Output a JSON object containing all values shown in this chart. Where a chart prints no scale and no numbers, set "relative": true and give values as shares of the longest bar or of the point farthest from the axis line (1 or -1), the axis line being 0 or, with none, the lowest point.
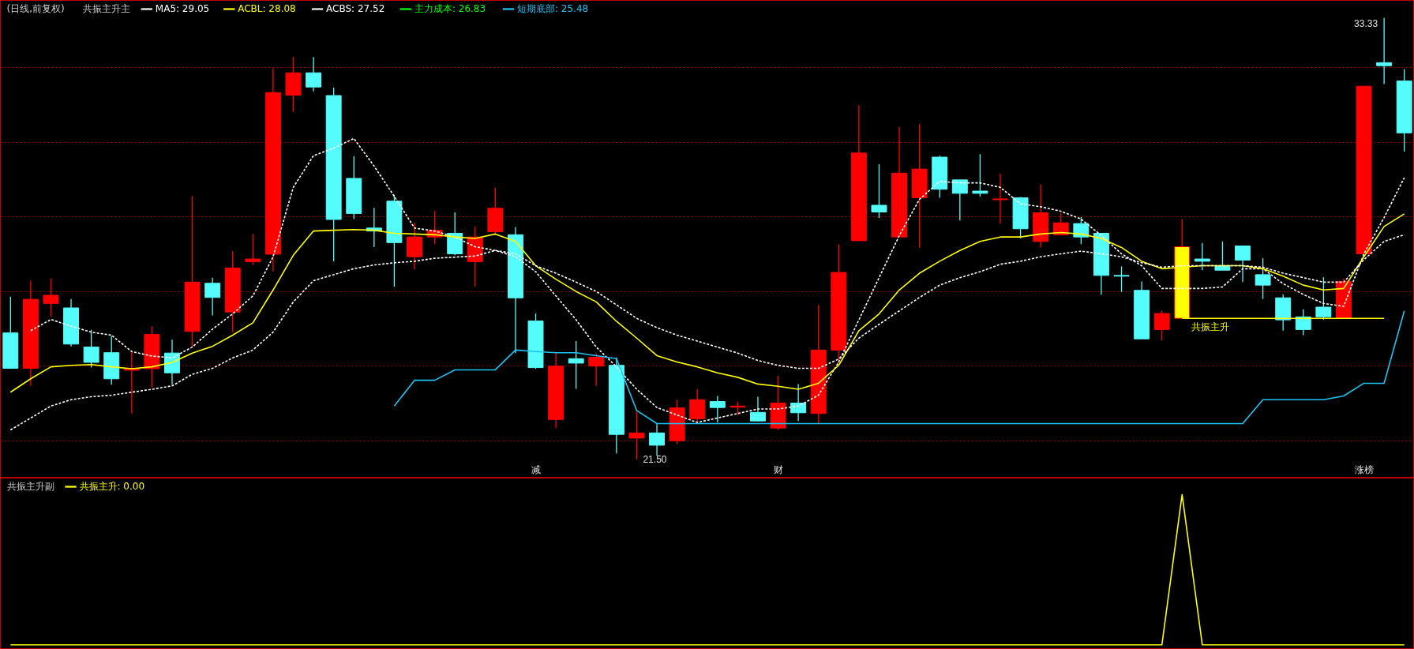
{
  "chart_data": [
    {
      "type": "candlestick",
      "title": "(日线,前复权)",
      "subtitle": "共振主升主",
      "legend": "top left",
      "tick_labels": "x",
      "grid": "y",
      "categories": [
        null,
        null,
        null,
        null,
        null,
        null,
        null,
        null,
        null,
        null,
        null,
        null,
        null,
        null,
        null,
        null,
        null,
        null,
        null,
        null,
        null,
        null,
        null,
        null,
        null,
        null,
        "减",
        null,
        null,
        null,
        null,
        null,
        null,
        null,
        null,
        null,
        null,
        null,
        "财",
        null,
        null,
        null,
        null,
        null,
        null,
        null,
        null,
        null,
        null,
        null,
        null,
        null,
        null,
        null,
        null,
        null,
        null,
        null,
        null,
        null,
        null,
        null,
        null,
        null,
        null,
        null,
        null,
        "涨榜",
        null,
        null
      ],
      "ylim": [
        21.0,
        33.8
      ],
      "yticks": [
        {
          "value": 22,
          "label": null
        },
        {
          "value": 24,
          "label": null
        },
        {
          "value": 26,
          "label": null
        },
        {
          "value": 28,
          "label": null
        },
        {
          "value": 30,
          "label": null
        },
        {
          "value": 32,
          "label": null
        }
      ],
      "ohlc": [
        [
          24.89,
          25.86,
          23.93,
          23.94
        ],
        [
          23.94,
          26.29,
          23.47,
          25.79
        ],
        [
          25.68,
          26.35,
          25.32,
          25.9
        ],
        [
          25.56,
          25.8,
          24.53,
          24.59
        ],
        [
          24.51,
          24.97,
          23.96,
          24.1
        ],
        [
          24.36,
          24.81,
          23.5,
          23.66
        ],
        [
          23.89,
          24.41,
          22.73,
          23.94
        ],
        [
          23.93,
          25.07,
          23.43,
          24.85
        ],
        [
          24.35,
          24.71,
          23.5,
          23.82
        ],
        [
          24.93,
          28.55,
          24.51,
          26.25
        ],
        [
          26.22,
          26.37,
          25.36,
          25.84
        ],
        [
          25.45,
          27.07,
          24.91,
          26.63
        ],
        [
          26.8,
          27.54,
          26.71,
          26.87
        ],
        [
          27.0,
          31.98,
          26.53,
          31.33
        ],
        [
          31.26,
          32.28,
          30.81,
          31.86
        ],
        [
          31.86,
          32.28,
          31.36,
          31.48
        ],
        [
          31.25,
          31.46,
          26.81,
          27.93
        ],
        [
          29.03,
          29.62,
          27.94,
          28.09
        ],
        [
          27.7,
          28.24,
          27.19,
          27.62
        ],
        [
          28.42,
          28.59,
          26.13,
          27.31
        ],
        [
          26.93,
          27.84,
          26.59,
          27.46
        ],
        [
          27.46,
          28.16,
          27.27,
          27.64
        ],
        [
          27.56,
          28.12,
          26.97,
          27.01
        ],
        [
          26.8,
          27.74,
          26.13,
          27.46
        ],
        [
          27.6,
          28.78,
          27.5,
          28.23
        ],
        [
          27.52,
          27.73,
          24.35,
          25.83
        ],
        [
          25.21,
          25.41,
          23.93,
          23.96
        ],
        [
          22.57,
          24.35,
          22.34,
          24.0
        ],
        [
          24.2,
          24.67,
          23.39,
          24.08
        ],
        [
          24.0,
          24.35,
          23.47,
          24.24
        ],
        [
          24.02,
          24.23,
          21.66,
          22.17
        ],
        [
          22.07,
          22.81,
          21.5,
          22.21
        ],
        [
          22.21,
          22.45,
          21.6,
          21.88
        ],
        [
          22.0,
          23.1,
          21.91,
          22.88
        ],
        [
          22.59,
          23.38,
          22.49,
          23.1
        ],
        [
          23.05,
          23.2,
          22.49,
          22.89
        ],
        [
          22.9,
          23.05,
          22.69,
          22.93
        ],
        [
          22.76,
          23.18,
          22.52,
          22.53
        ],
        [
          22.34,
          23.74,
          22.29,
          23.01
        ],
        [
          23.01,
          23.52,
          22.53,
          22.75
        ],
        [
          22.73,
          25.64,
          22.45,
          24.43
        ],
        [
          24.43,
          27.26,
          24.06,
          26.51
        ],
        [
          27.36,
          30.99,
          27.36,
          29.71
        ],
        [
          28.31,
          29.41,
          27.97,
          28.13
        ],
        [
          27.46,
          30.41,
          27.46,
          29.17
        ],
        [
          28.51,
          30.49,
          27.18,
          29.28
        ],
        [
          29.6,
          29.64,
          28.51,
          28.74
        ],
        [
          28.99,
          28.99,
          27.9,
          28.63
        ],
        [
          28.69,
          29.68,
          28.55,
          28.63
        ],
        [
          28.46,
          29.16,
          27.82,
          28.48
        ],
        [
          28.51,
          28.53,
          27.42,
          27.68
        ],
        [
          27.34,
          28.87,
          27.18,
          28.11
        ],
        [
          27.52,
          28.11,
          27.52,
          27.84
        ],
        [
          27.82,
          28.0,
          27.27,
          27.46
        ],
        [
          27.56,
          27.56,
          25.91,
          26.43
        ],
        [
          26.43,
          26.67,
          25.99,
          26.41
        ],
        [
          26.03,
          26.27,
          24.73,
          24.73
        ],
        [
          24.98,
          25.49,
          24.69,
          25.41
        ],
        [
          25.28,
          27.94,
          25.28,
          27.2
        ],
        [
          26.87,
          27.3,
          26.57,
          26.81
        ],
        [
          26.69,
          27.34,
          26.57,
          26.57
        ],
        [
          27.22,
          27.22,
          26.25,
          26.84
        ],
        [
          26.45,
          26.89,
          25.8,
          26.17
        ],
        [
          25.83,
          25.92,
          24.95,
          25.24
        ],
        [
          25.32,
          25.52,
          24.83,
          24.98
        ],
        [
          25.58,
          26.38,
          25.24,
          25.32
        ],
        [
          25.28,
          26.35,
          25.28,
          26.27
        ],
        [
          27.01,
          31.5,
          27.01,
          31.5
        ],
        [
          32.13,
          33.33,
          31.56,
          32.05
        ],
        [
          31.64,
          31.96,
          29.75,
          30.25
        ]
      ],
      "colors": [
        "#54fcfc",
        "#ff0000",
        "#ff0000",
        "#54fcfc",
        "#54fcfc",
        "#54fcfc",
        "#ff0000",
        "#ff0000",
        "#54fcfc",
        "#ff0000",
        "#54fcfc",
        "#ff0000",
        "#ff0000",
        "#ff0000",
        "#ff0000",
        "#54fcfc",
        "#54fcfc",
        "#54fcfc",
        "#54fcfc",
        "#54fcfc",
        "#ff0000",
        "#ff0000",
        "#54fcfc",
        "#ff0000",
        "#ff0000",
        "#54fcfc",
        "#54fcfc",
        "#ff0000",
        "#54fcfc",
        "#ff0000",
        "#54fcfc",
        "#ff0000",
        "#54fcfc",
        "#ff0000",
        "#ff0000",
        "#54fcfc",
        "#ff0000",
        "#54fcfc",
        "#ff0000",
        "#54fcfc",
        "#ff0000",
        "#ff0000",
        "#ff0000",
        "#54fcfc",
        "#ff0000",
        "#ff0000",
        "#54fcfc",
        "#54fcfc",
        "#54fcfc",
        "#ff0000",
        "#54fcfc",
        "#ff0000",
        "#ff0000",
        "#54fcfc",
        "#54fcfc",
        "#54fcfc",
        "#54fcfc",
        "#ff0000",
        "#ffff00",
        "#54fcfc",
        "#54fcfc",
        "#54fcfc",
        "#54fcfc",
        "#54fcfc",
        "#54fcfc",
        "#54fcfc",
        "#ff0000",
        "#ff0000",
        "#54fcfc",
        "#54fcfc"
      ],
      "series": [
        {
          "type": "line",
          "name": "MA5: 29.05",
          "color": "#ffffff",
          "line_style": "dashed",
          "values": [
            null,
            24.95,
            25.25,
            25.07,
            24.91,
            24.83,
            24.39,
            24.27,
            24.22,
            24.51,
            24.99,
            25.4,
            25.88,
            26.93,
            28.79,
            29.64,
            29.84,
            30.1,
            29.36,
            28.55,
            27.7,
            27.62,
            27.46,
            27.2,
            27.1,
            26.93,
            26.53,
            25.88,
            25.24,
            24.51,
            23.98,
            23.38,
            22.89,
            22.69,
            22.49,
            22.61,
            22.73,
            22.85,
            22.85,
            22.93,
            23.22,
            24.11,
            25.24,
            26.37,
            27.5,
            28.47,
            28.95,
            28.91,
            28.91,
            28.79,
            28.35,
            28.27,
            28.15,
            27.94,
            27.5,
            27.01,
            26.69,
            26.08,
            26.08,
            26.08,
            26.12,
            26.61,
            26.61,
            26.21,
            25.92,
            25.68,
            25.6,
            27.01,
            27.98,
            29.05
          ]
        },
        {
          "type": "line",
          "name": "ACBL: 28.08",
          "color": "#ffff00",
          "line_style": "solid",
          "values": [
            23.3,
            23.66,
            23.98,
            24.02,
            24.04,
            23.98,
            23.93,
            23.98,
            24.1,
            24.35,
            24.53,
            24.83,
            25.16,
            26.04,
            26.97,
            27.62,
            27.64,
            27.66,
            27.64,
            27.56,
            27.54,
            27.52,
            27.46,
            27.42,
            27.54,
            27.34,
            26.69,
            26.33,
            26.0,
            25.72,
            25.2,
            24.75,
            24.28,
            24.11,
            23.98,
            23.82,
            23.7,
            23.52,
            23.46,
            23.38,
            23.54,
            24.02,
            24.95,
            25.4,
            26.04,
            26.49,
            26.81,
            27.1,
            27.34,
            27.46,
            27.46,
            27.54,
            27.58,
            27.54,
            27.42,
            27.18,
            26.81,
            26.61,
            26.65,
            26.69,
            26.69,
            26.69,
            26.61,
            26.41,
            26.17,
            26.04,
            26.08,
            26.93,
            27.74,
            28.08
          ]
        },
        {
          "type": "line",
          "name": "ACBS: 27.52",
          "color": "#ffffff",
          "line_style": "dashed",
          "values": [
            22.29,
            22.61,
            22.93,
            23.1,
            23.18,
            23.22,
            23.3,
            23.38,
            23.47,
            23.78,
            23.94,
            24.22,
            24.43,
            24.91,
            25.72,
            26.29,
            26.45,
            26.61,
            26.71,
            26.77,
            26.81,
            26.89,
            26.92,
            26.95,
            27.1,
            27.01,
            26.69,
            26.49,
            26.25,
            26.0,
            25.64,
            25.28,
            25.03,
            24.83,
            24.67,
            24.51,
            24.35,
            24.15,
            24.02,
            23.94,
            23.94,
            24.19,
            24.75,
            25.12,
            25.48,
            25.84,
            26.17,
            26.37,
            26.53,
            26.73,
            26.81,
            26.93,
            27.01,
            27.08,
            27.01,
            26.93,
            26.77,
            26.65,
            26.69,
            26.69,
            26.69,
            26.69,
            26.65,
            26.49,
            26.37,
            26.25,
            26.25,
            26.85,
            27.34,
            27.52
          ]
        },
        {
          "type": "line",
          "name": "主力成本: 26.83",
          "color": "#00ff00",
          "line_style": "solid",
          "values": [
            null,
            null,
            null,
            null,
            null,
            null,
            null,
            null,
            null,
            null,
            null,
            null,
            null,
            null,
            null,
            null,
            null,
            null,
            null,
            null,
            null,
            null,
            null,
            null,
            null,
            null,
            null,
            null,
            null,
            null,
            null,
            null,
            null,
            null,
            null,
            null,
            null,
            null,
            null,
            null,
            null,
            null,
            null,
            null,
            null,
            null,
            null,
            null,
            null,
            null,
            null,
            null,
            null,
            null,
            null,
            null,
            null,
            null,
            null,
            null,
            null,
            null,
            null,
            null,
            null,
            null,
            null,
            null,
            null,
            null
          ]
        },
        {
          "type": "line",
          "name": "短期底部: 25.48",
          "color": "#1cc4f4",
          "line_style": "solid",
          "values": [
            null,
            null,
            null,
            null,
            null,
            null,
            null,
            null,
            null,
            null,
            null,
            null,
            null,
            null,
            null,
            null,
            null,
            null,
            null,
            22.93,
            23.62,
            23.62,
            23.9,
            23.9,
            23.9,
            24.43,
            24.39,
            24.36,
            24.36,
            24.28,
            24.2,
            22.81,
            22.46,
            22.46,
            22.46,
            22.46,
            22.46,
            22.46,
            22.46,
            22.46,
            22.46,
            22.46,
            22.46,
            22.46,
            22.46,
            22.46,
            22.46,
            22.46,
            22.46,
            22.46,
            22.46,
            22.46,
            22.46,
            22.46,
            22.46,
            22.46,
            22.46,
            22.46,
            22.46,
            22.46,
            22.46,
            22.46,
            23.1,
            23.1,
            23.1,
            23.1,
            23.2,
            23.54,
            23.54,
            25.48
          ]
        },
        {
          "type": "line",
          "name": "共振主升",
          "color": "#ffff00",
          "line_style": "solid",
          "values": [
            null,
            null,
            null,
            null,
            null,
            null,
            null,
            null,
            null,
            null,
            null,
            null,
            null,
            null,
            null,
            null,
            null,
            null,
            null,
            null,
            null,
            null,
            null,
            null,
            null,
            null,
            null,
            null,
            null,
            null,
            null,
            null,
            null,
            null,
            null,
            null,
            null,
            null,
            null,
            null,
            null,
            null,
            null,
            null,
            null,
            null,
            null,
            null,
            null,
            null,
            null,
            null,
            null,
            null,
            null,
            null,
            null,
            null,
            25.28,
            25.28,
            25.28,
            25.28,
            25.28,
            25.28,
            25.28,
            25.28,
            25.28,
            25.28,
            25.28,
            null
          ]
        }
      ],
      "annotations": [
        "21.50",
        "33.33"
      ]
    },
    {
      "type": "line",
      "title": "共振主升副",
      "legend": "top left",
      "relative": true,
      "tick_labels": false,
      "categories": [
        null,
        null,
        null,
        null,
        null,
        null,
        null,
        null,
        null,
        null,
        null,
        null,
        null,
        null,
        null,
        null,
        null,
        null,
        null,
        null,
        null,
        null,
        null,
        null,
        null,
        null,
        null,
        null,
        null,
        null,
        null,
        null,
        null,
        null,
        null,
        null,
        null,
        null,
        null,
        null,
        null,
        null,
        null,
        null,
        null,
        null,
        null,
        null,
        null,
        null,
        null,
        null,
        null,
        null,
        null,
        null,
        null,
        null,
        null,
        null,
        null,
        null,
        null,
        null,
        null,
        null,
        null,
        null,
        null,
        null
      ],
      "series": [
        {
          "name": "共振主升: 0.00",
          "color": "#ffff00",
          "values": [
            0,
            0,
            0,
            0,
            0,
            0,
            0,
            0,
            0,
            0,
            0,
            0,
            0,
            0,
            0,
            0,
            0,
            0,
            0,
            0,
            0,
            0,
            0,
            0,
            0,
            0,
            0,
            0,
            0,
            0,
            0,
            0,
            0,
            0,
            0,
            0,
            0,
            0,
            0,
            0,
            0,
            0,
            0,
            0,
            0,
            0,
            0,
            0,
            0,
            0,
            0,
            0,
            0,
            0,
            0,
            0,
            0,
            0,
            1,
            0,
            0,
            0,
            0,
            0,
            0,
            0,
            0,
            0,
            0,
            0
          ]
        }
      ]
    }
  ]
}
